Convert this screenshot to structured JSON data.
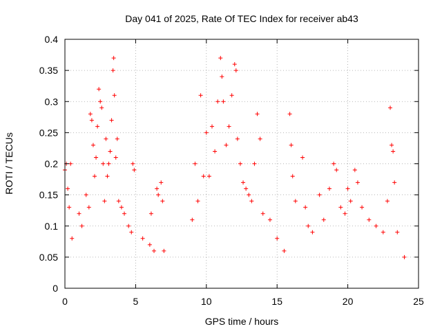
{
  "chart_data": {
    "type": "scatter",
    "title": "Day 041 of 2025, Rate Of TEC Index for receiver ab43",
    "xlabel": "GPS time / hours",
    "ylabel": "ROTI / TECUs",
    "xlim": [
      0,
      25
    ],
    "ylim": [
      0,
      0.4
    ],
    "xticks": [
      "0",
      "5",
      "10",
      "15",
      "20",
      "25"
    ],
    "yticks": [
      "0",
      "0.05",
      "0.1",
      "0.15",
      "0.2",
      "0.25",
      "0.3",
      "0.35",
      "0.4"
    ],
    "grid": true,
    "marker": "+",
    "color": "#ff0000",
    "gap_hours": [
      7.1,
      9.0
    ],
    "series": [
      {
        "points": [
          [
            0.0,
            0.19
          ],
          [
            0.1,
            0.2
          ],
          [
            0.2,
            0.16
          ],
          [
            0.3,
            0.13
          ],
          [
            0.4,
            0.2
          ],
          [
            0.5,
            0.08
          ],
          [
            1.0,
            0.12
          ],
          [
            1.2,
            0.1
          ],
          [
            1.5,
            0.15
          ],
          [
            1.7,
            0.13
          ],
          [
            1.8,
            0.28
          ],
          [
            1.9,
            0.27
          ],
          [
            2.0,
            0.23
          ],
          [
            2.1,
            0.18
          ],
          [
            2.2,
            0.21
          ],
          [
            2.3,
            0.26
          ],
          [
            2.4,
            0.32
          ],
          [
            2.5,
            0.3
          ],
          [
            2.6,
            0.29
          ],
          [
            2.7,
            0.2
          ],
          [
            2.8,
            0.14
          ],
          [
            2.9,
            0.24
          ],
          [
            3.0,
            0.18
          ],
          [
            3.1,
            0.2
          ],
          [
            3.2,
            0.22
          ],
          [
            3.3,
            0.27
          ],
          [
            3.4,
            0.35
          ],
          [
            3.45,
            0.37
          ],
          [
            3.5,
            0.31
          ],
          [
            3.6,
            0.21
          ],
          [
            3.7,
            0.24
          ],
          [
            3.8,
            0.14
          ],
          [
            4.0,
            0.13
          ],
          [
            4.2,
            0.12
          ],
          [
            4.5,
            0.1
          ],
          [
            4.7,
            0.09
          ],
          [
            4.8,
            0.2
          ],
          [
            4.9,
            0.19
          ],
          [
            5.5,
            0.08
          ],
          [
            6.0,
            0.07
          ],
          [
            6.1,
            0.12
          ],
          [
            6.3,
            0.06
          ],
          [
            6.5,
            0.16
          ],
          [
            6.6,
            0.15
          ],
          [
            6.8,
            0.17
          ],
          [
            6.9,
            0.14
          ],
          [
            7.0,
            0.06
          ],
          [
            9.0,
            0.11
          ],
          [
            9.2,
            0.2
          ],
          [
            9.4,
            0.14
          ],
          [
            9.6,
            0.31
          ],
          [
            9.8,
            0.18
          ],
          [
            10.0,
            0.25
          ],
          [
            10.2,
            0.18
          ],
          [
            10.4,
            0.26
          ],
          [
            10.6,
            0.22
          ],
          [
            10.8,
            0.3
          ],
          [
            11.0,
            0.37
          ],
          [
            11.1,
            0.34
          ],
          [
            11.2,
            0.3
          ],
          [
            11.4,
            0.23
          ],
          [
            11.6,
            0.26
          ],
          [
            11.8,
            0.31
          ],
          [
            12.0,
            0.36
          ],
          [
            12.1,
            0.35
          ],
          [
            12.2,
            0.24
          ],
          [
            12.4,
            0.2
          ],
          [
            12.6,
            0.17
          ],
          [
            12.8,
            0.16
          ],
          [
            13.0,
            0.15
          ],
          [
            13.2,
            0.14
          ],
          [
            13.4,
            0.2
          ],
          [
            13.6,
            0.28
          ],
          [
            13.8,
            0.24
          ],
          [
            14.0,
            0.12
          ],
          [
            14.5,
            0.11
          ],
          [
            15.0,
            0.08
          ],
          [
            15.5,
            0.06
          ],
          [
            15.9,
            0.28
          ],
          [
            16.0,
            0.23
          ],
          [
            16.1,
            0.18
          ],
          [
            16.3,
            0.14
          ],
          [
            16.8,
            0.21
          ],
          [
            17.0,
            0.13
          ],
          [
            17.2,
            0.1
          ],
          [
            17.5,
            0.09
          ],
          [
            18.0,
            0.15
          ],
          [
            18.3,
            0.11
          ],
          [
            18.7,
            0.16
          ],
          [
            19.0,
            0.2
          ],
          [
            19.2,
            0.19
          ],
          [
            19.5,
            0.13
          ],
          [
            19.8,
            0.12
          ],
          [
            20.0,
            0.16
          ],
          [
            20.2,
            0.14
          ],
          [
            20.5,
            0.19
          ],
          [
            20.7,
            0.17
          ],
          [
            21.0,
            0.13
          ],
          [
            21.5,
            0.11
          ],
          [
            22.0,
            0.1
          ],
          [
            22.5,
            0.09
          ],
          [
            22.8,
            0.14
          ],
          [
            23.0,
            0.29
          ],
          [
            23.1,
            0.23
          ],
          [
            23.2,
            0.22
          ],
          [
            23.3,
            0.17
          ],
          [
            23.5,
            0.09
          ],
          [
            24.0,
            0.05
          ]
        ]
      }
    ]
  }
}
